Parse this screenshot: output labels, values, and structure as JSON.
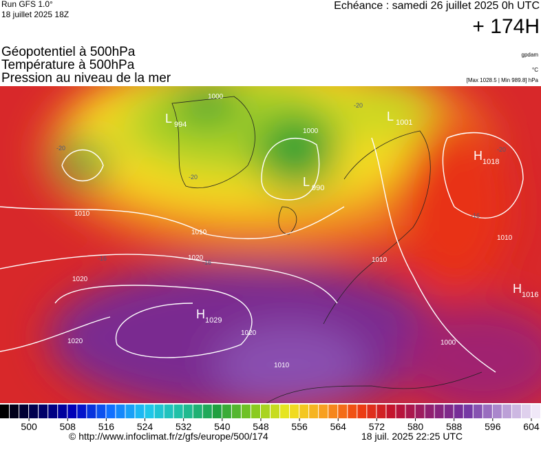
{
  "header": {
    "run": "Run GFS 1.0°",
    "run_date": "18 juillet 2025 18Z",
    "valid": "Echéance : samedi 26 juillet 2025 0h UTC",
    "lead": "+ 174H"
  },
  "titles": [
    "Géopotentiel à 500hPa",
    "Température à 500hPa",
    "Pression au niveau de la mer"
  ],
  "units": [
    "gpdam",
    "°C"
  ],
  "pressure_range": "[Max 1028.5 | Min 989.8] hPa",
  "centers": [
    {
      "type": "L",
      "value": 994
    },
    {
      "type": "L",
      "value": 990
    },
    {
      "type": "L",
      "value": 1001
    },
    {
      "type": "H",
      "value": 1018
    },
    {
      "type": "H",
      "value": 1016
    },
    {
      "type": "H",
      "value": 1029
    }
  ],
  "isobar_labels": [
    1010,
    1010,
    1020,
    1020,
    1020,
    1020,
    1000,
    1010,
    1010,
    1000,
    1010,
    1000
  ],
  "temperature_labels": [
    -20,
    -20,
    -20,
    -20,
    -16,
    -16,
    -16
  ],
  "colorbar": {
    "range": [
      494,
      606
    ],
    "ticks": [
      500,
      508,
      516,
      524,
      532,
      540,
      548,
      556,
      564,
      572,
      580,
      588,
      596,
      604
    ]
  },
  "footer": {
    "url": "© http://www.infoclimat.fr/z/gfs/europe/500/174",
    "timestamp": "18 juil. 2025 22:25 UTC"
  }
}
